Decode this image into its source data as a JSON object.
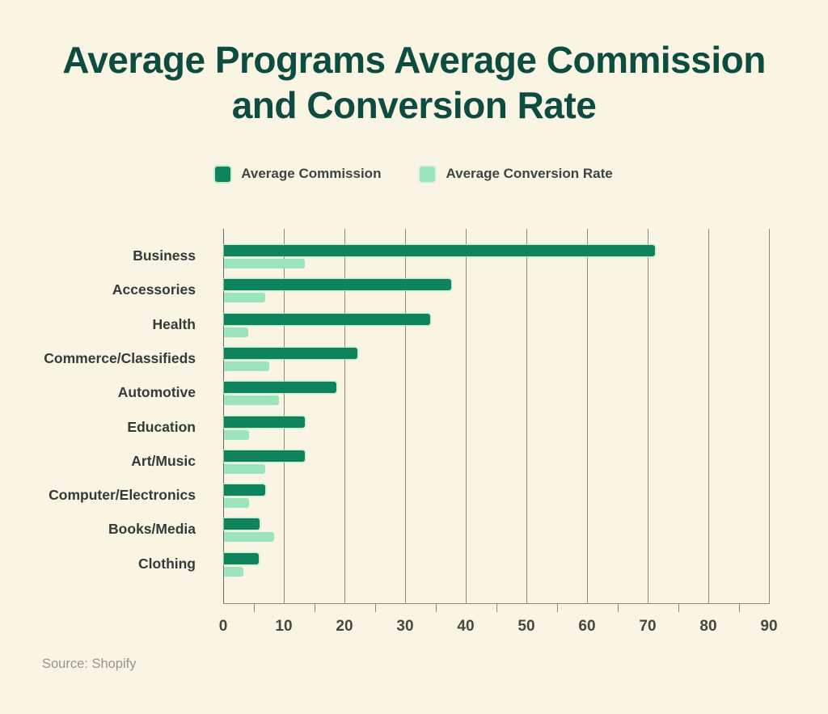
{
  "page": {
    "background": "#FAF4E3"
  },
  "title": {
    "lines": [
      "Average Programs Average Commission",
      "and Conversion Rate"
    ],
    "color": "#0D4C41"
  },
  "legend": [
    {
      "label": "Average Commission",
      "color": "#0F845C"
    },
    {
      "label": "Average Conversion Rate",
      "color": "#9CE4BC"
    }
  ],
  "source": "Source: Shopify",
  "chart_data": {
    "type": "bar",
    "orientation": "horizontal",
    "title": "Average Programs Average Commission and Conversion Rate",
    "categories": [
      "Business",
      "Accessories",
      "Health",
      "Commerce/Classifieds",
      "Automotive",
      "Education",
      "Art/Music",
      "Computer/Electronics",
      "Books/Media",
      "Clothing"
    ],
    "series": [
      {
        "name": "Average Commission",
        "color": "#0F845C",
        "values": [
          71,
          37.5,
          34,
          22,
          18.5,
          13.3,
          13.3,
          6.8,
          5.9,
          5.7
        ]
      },
      {
        "name": "Average Conversion Rate",
        "color": "#9CE4BC",
        "values": [
          13.3,
          6.8,
          4,
          7.5,
          9.1,
          4.1,
          6.8,
          4.1,
          8.3,
          3.2
        ]
      }
    ],
    "x_axis": {
      "min": 0,
      "max": 90,
      "ticks": [
        0,
        10,
        20,
        30,
        40,
        50,
        60,
        70,
        80,
        90
      ],
      "minor_tick_step": 5
    },
    "y_axis": {
      "label": ""
    },
    "grid": true,
    "legend_position": "top",
    "background": "#FAF4E3"
  }
}
